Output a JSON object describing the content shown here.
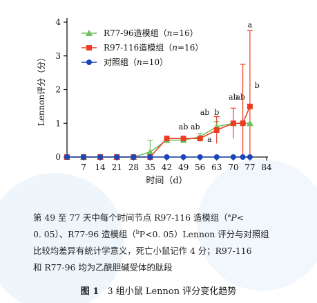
{
  "chart_data": {
    "type": "line",
    "xlabel": "时间（d）",
    "ylabel": "Lennon评分（分）",
    "xlim": [
      0,
      84
    ],
    "ylim": [
      0,
      4
    ],
    "xticks": [
      "7",
      "14",
      "21",
      "28",
      "35",
      "42",
      "49",
      "56",
      "63",
      "70",
      "77",
      "84"
    ],
    "yticks": [
      "0",
      "1",
      "2",
      "3",
      "4"
    ],
    "legend_position": "top-left",
    "series": [
      {
        "name": "R77-96造模组（n=16）",
        "label_prefix": "R77-96造模组（",
        "label_n": "n",
        "label_suffix": "=16）",
        "color": "#6cc15a",
        "marker": "triangle",
        "x": [
          0,
          7,
          14,
          21,
          28,
          35,
          42,
          49,
          56,
          63,
          70,
          77
        ],
        "y": [
          0,
          0,
          0,
          0,
          0,
          0.15,
          0.5,
          0.5,
          0.6,
          0.9,
          1.0,
          1.0
        ],
        "err": [
          0,
          0,
          0,
          0,
          0,
          0.35,
          0,
          0,
          0.1,
          0.15,
          0,
          0
        ]
      },
      {
        "name": "R97-116造模组（n=16）",
        "label_prefix": "R97-116造模组（",
        "label_n": "n",
        "label_suffix": "=16）",
        "color": "#ea3d24",
        "marker": "square",
        "x": [
          0,
          7,
          14,
          21,
          28,
          35,
          42,
          49,
          56,
          63,
          70,
          74,
          77
        ],
        "y": [
          0,
          0,
          0,
          0,
          0,
          0,
          0.55,
          0.55,
          0.55,
          0.8,
          1.0,
          1.0,
          1.5
        ],
        "err": [
          0,
          0,
          0,
          0,
          0,
          0,
          0,
          0,
          0,
          0.4,
          0.45,
          1.75,
          2.25
        ]
      },
      {
        "name": "对照组（n=10）",
        "label_prefix": "对照组（",
        "label_n": "n",
        "label_suffix": "=10）",
        "color": "#1a46b8",
        "marker": "circle",
        "x": [
          0,
          7,
          14,
          21,
          28,
          35,
          42,
          49,
          56,
          63,
          70,
          74,
          77
        ],
        "y": [
          0,
          0,
          0,
          0,
          0,
          0,
          0,
          0,
          0,
          0,
          0,
          0,
          0
        ],
        "err": [
          0,
          0,
          0,
          0,
          0,
          0,
          0,
          0,
          0,
          0,
          0,
          0,
          0
        ]
      }
    ],
    "annotations": [
      {
        "x": 49,
        "y": 0.82,
        "text": "ab"
      },
      {
        "x": 54,
        "y": 0.82,
        "text": "ab"
      },
      {
        "x": 58,
        "y": 1.25,
        "text": "ab"
      },
      {
        "x": 63,
        "y": 1.25,
        "text": "b"
      },
      {
        "x": 60,
        "y": 0.45,
        "text": "a"
      },
      {
        "x": 70,
        "y": 1.7,
        "text": "ab"
      },
      {
        "x": 73,
        "y": 1.7,
        "text": "ab"
      },
      {
        "x": 77,
        "y": 3.85,
        "text": "a"
      },
      {
        "x": 80,
        "y": 2.05,
        "text": "b"
      }
    ]
  },
  "caption": {
    "line1": "第 49 至 77 天中每个时间节点 R97-116 造模组（",
    "line1_sup": "a",
    "line1_p": "P<",
    "line2_a": "0. 05）、R77-96 造模组（",
    "line2_sup": "b",
    "line2_b": "P<0. 05）Lennon 评分与对照组",
    "line3": "比较均差异有统计学意义，死亡小鼠记作 4 分；R97-116",
    "line4": "和 R77-96 均为乙酰胆碱受体的肽段"
  },
  "figure_title": {
    "label": "图 1",
    "text": "3 组小鼠 Lennon 评分变化趋势"
  }
}
